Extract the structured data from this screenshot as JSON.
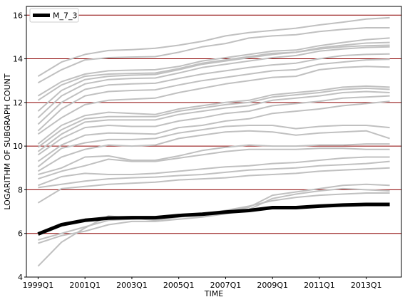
{
  "chart_data": {
    "type": "line",
    "xlabel": "TIME",
    "ylabel": "LOGARITHM OF SUBGRAPH COUNT",
    "xlim": [
      "1998Q3",
      "2014Q3"
    ],
    "ylim": [
      4,
      16.4
    ],
    "grid": {
      "y": true,
      "x": false,
      "color": "#8b0000"
    },
    "x_ticks": [
      "1999Q1",
      "2001Q1",
      "2003Q1",
      "2005Q1",
      "2007Q1",
      "2009Q1",
      "2011Q1",
      "2013Q1"
    ],
    "y_ticks": [
      4,
      6,
      8,
      10,
      12,
      14,
      16
    ],
    "legend": {
      "position": "top-left",
      "entries": [
        "M_7_3"
      ]
    },
    "x": [
      "1999Q1",
      "2000Q1",
      "2001Q1",
      "2002Q1",
      "2003Q1",
      "2004Q1",
      "2005Q1",
      "2006Q1",
      "2007Q1",
      "2008Q1",
      "2009Q1",
      "2010Q1",
      "2011Q1",
      "2012Q1",
      "2013Q1",
      "2014Q1"
    ],
    "highlight": {
      "name": "M_7_3",
      "color": "#000000",
      "values": [
        5.97,
        6.4,
        6.6,
        6.7,
        6.72,
        6.72,
        6.82,
        6.88,
        6.98,
        7.05,
        7.18,
        7.18,
        7.25,
        7.3,
        7.33,
        7.33
      ]
    },
    "background_series_color": "#c0c0c0",
    "series": [
      {
        "values": [
          13.2,
          13.85,
          14.2,
          14.38,
          14.42,
          14.48,
          14.62,
          14.8,
          15.05,
          15.2,
          15.3,
          15.4,
          15.55,
          15.68,
          15.82,
          15.88
        ]
      },
      {
        "values": [
          12.9,
          13.5,
          13.95,
          14.05,
          14.08,
          14.1,
          14.3,
          14.55,
          14.7,
          14.95,
          15.05,
          15.1,
          15.25,
          15.35,
          15.42,
          15.42
        ]
      },
      {
        "values": [
          12.3,
          12.95,
          13.3,
          13.45,
          13.48,
          13.5,
          13.65,
          13.9,
          14.05,
          14.2,
          14.35,
          14.4,
          14.6,
          14.75,
          14.88,
          14.95
        ]
      },
      {
        "values": [
          12.1,
          12.8,
          13.2,
          13.3,
          13.33,
          13.35,
          13.55,
          13.8,
          13.95,
          14.1,
          14.25,
          14.3,
          14.5,
          14.62,
          14.72,
          14.75
        ]
      },
      {
        "values": [
          11.6,
          12.55,
          13.05,
          13.2,
          13.25,
          13.28,
          13.5,
          13.75,
          13.9,
          14.05,
          14.2,
          14.3,
          14.45,
          14.55,
          14.6,
          14.62
        ]
      },
      {
        "values": [
          11.3,
          12.3,
          12.85,
          13.05,
          13.1,
          13.12,
          13.35,
          13.6,
          13.75,
          13.9,
          14.05,
          14.15,
          14.35,
          14.45,
          14.52,
          14.55
        ]
      },
      {
        "values": [
          11.0,
          12.0,
          12.6,
          12.8,
          12.85,
          12.88,
          13.1,
          13.3,
          13.45,
          13.6,
          13.72,
          13.8,
          14.0,
          14.15,
          14.2,
          14.22
        ]
      },
      {
        "values": [
          10.7,
          11.7,
          12.3,
          12.5,
          12.55,
          12.58,
          12.8,
          13.0,
          13.15,
          13.3,
          13.45,
          13.5,
          13.75,
          13.85,
          13.95,
          13.98
        ]
      },
      {
        "values": [
          10.55,
          11.3,
          11.9,
          12.1,
          12.15,
          12.2,
          12.45,
          12.65,
          12.85,
          13.0,
          13.15,
          13.2,
          13.5,
          13.6,
          13.65,
          13.62
        ]
      },
      {
        "values": [
          10.1,
          10.95,
          11.4,
          11.55,
          11.5,
          11.45,
          11.7,
          11.85,
          12.0,
          12.1,
          12.35,
          12.45,
          12.55,
          12.7,
          12.75,
          12.7
        ]
      },
      {
        "values": [
          9.95,
          10.75,
          11.25,
          11.35,
          11.35,
          11.35,
          11.6,
          11.75,
          11.9,
          12.0,
          12.25,
          12.35,
          12.45,
          12.6,
          12.65,
          12.6
        ]
      },
      {
        "values": [
          9.75,
          10.55,
          11.1,
          11.2,
          11.2,
          11.2,
          11.45,
          11.6,
          11.75,
          11.85,
          12.1,
          12.2,
          12.3,
          12.45,
          12.5,
          12.45
        ]
      },
      {
        "values": [
          9.6,
          10.35,
          10.85,
          10.95,
          10.9,
          10.9,
          11.15,
          11.3,
          11.5,
          11.6,
          11.85,
          11.95,
          12.05,
          12.2,
          12.25,
          12.3
        ]
      },
      {
        "values": [
          9.3,
          10.05,
          10.5,
          10.6,
          10.58,
          10.55,
          10.85,
          10.95,
          11.15,
          11.25,
          11.5,
          11.6,
          11.7,
          11.85,
          11.95,
          12.05
        ]
      },
      {
        "values": [
          9.05,
          9.9,
          10.15,
          10.3,
          10.3,
          10.35,
          10.6,
          10.75,
          10.9,
          10.95,
          10.95,
          10.8,
          10.9,
          10.95,
          10.95,
          10.85
        ]
      },
      {
        "values": [
          8.85,
          9.5,
          9.85,
          10.05,
          10.0,
          10.05,
          10.35,
          10.5,
          10.65,
          10.7,
          10.65,
          10.5,
          10.6,
          10.65,
          10.7,
          10.35
        ]
      },
      {
        "values": [
          8.7,
          9.0,
          9.5,
          9.55,
          9.35,
          9.35,
          9.55,
          9.8,
          9.95,
          10.05,
          10.0,
          10.0,
          10.05,
          10.05,
          10.1,
          10.1
        ]
      },
      {
        "values": [
          8.5,
          8.85,
          9.1,
          9.4,
          9.3,
          9.3,
          9.45,
          9.6,
          9.75,
          9.85,
          9.85,
          9.85,
          9.9,
          9.9,
          9.85,
          9.85
        ]
      },
      {
        "values": [
          8.2,
          8.6,
          8.75,
          8.7,
          8.7,
          8.75,
          8.85,
          8.95,
          9.05,
          9.1,
          9.2,
          9.25,
          9.35,
          9.45,
          9.5,
          9.5
        ]
      },
      {
        "values": [
          8.1,
          8.25,
          8.4,
          8.5,
          8.55,
          8.58,
          8.65,
          8.7,
          8.8,
          8.9,
          8.95,
          9.0,
          9.1,
          9.15,
          9.2,
          9.3
        ]
      },
      {
        "values": [
          7.4,
          8.05,
          8.15,
          8.25,
          8.3,
          8.35,
          8.45,
          8.5,
          8.55,
          8.65,
          8.7,
          8.75,
          8.85,
          8.9,
          8.95,
          9.0
        ]
      },
      {
        "values": [
          5.7,
          6.0,
          6.3,
          6.6,
          6.65,
          6.7,
          6.8,
          6.85,
          7.0,
          7.2,
          7.75,
          7.9,
          8.05,
          8.2,
          8.25,
          8.2
        ]
      },
      {
        "values": [
          5.55,
          5.9,
          6.1,
          6.4,
          6.55,
          6.55,
          6.65,
          6.75,
          6.9,
          7.1,
          7.6,
          7.8,
          7.95,
          8.05,
          8.0,
          7.95
        ]
      },
      {
        "values": [
          4.5,
          5.6,
          6.25,
          6.8,
          6.7,
          6.6,
          6.75,
          6.9,
          7.05,
          7.25,
          7.5,
          7.65,
          7.75,
          7.8,
          7.85,
          7.85
        ]
      }
    ]
  }
}
